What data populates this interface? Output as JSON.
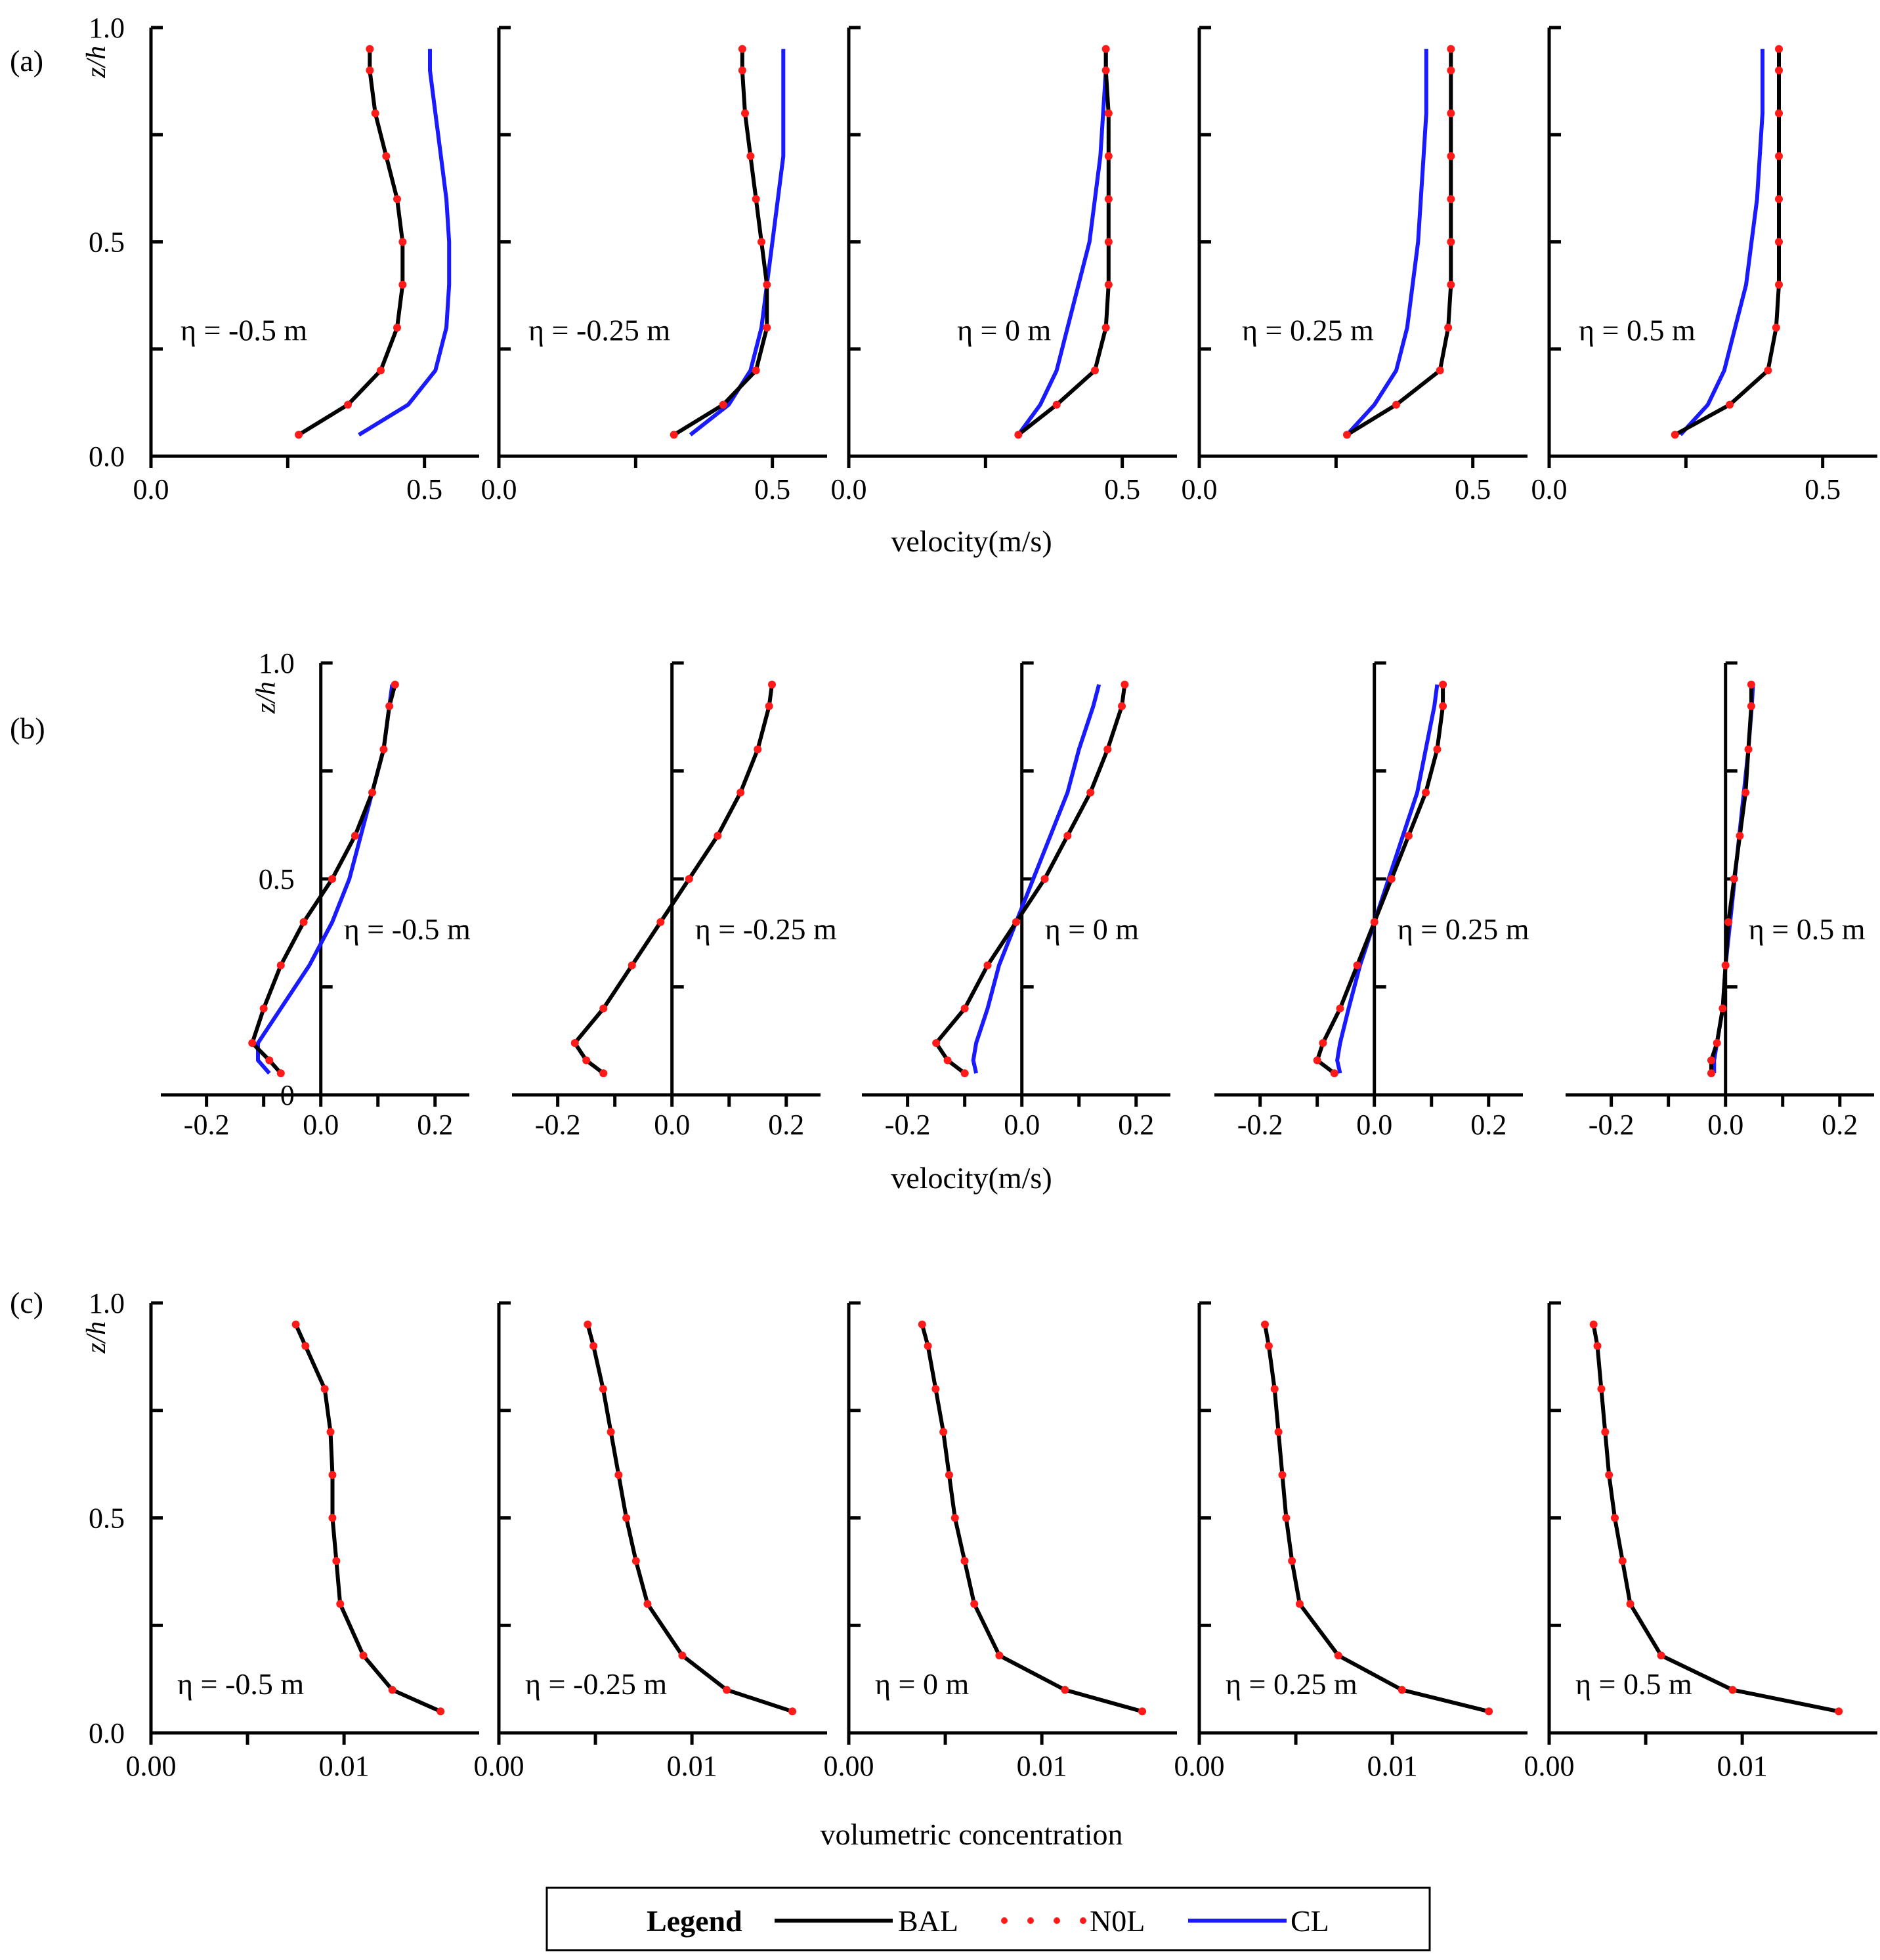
{
  "colors": {
    "BAL": "#000000",
    "N0L": "#ff1a1a",
    "CL": "#1a1aff"
  },
  "legend": {
    "title": "Legend",
    "items": [
      {
        "key": "BAL",
        "label": "BAL",
        "style": "solid-black"
      },
      {
        "key": "N0L",
        "label": "N0L",
        "style": "red-dots"
      },
      {
        "key": "CL",
        "label": "CL",
        "style": "solid-blue"
      }
    ]
  },
  "chart_data": [
    {
      "type": "line",
      "panel_label": "(a)",
      "xlabel": "velocity(m/s)",
      "ylabel": "z/h",
      "xlim": [
        0,
        0.6
      ],
      "ylim": [
        0,
        1
      ],
      "xticks": [
        0.0,
        0.25,
        0.5
      ],
      "xtick_labels": [
        "0.0",
        "",
        "0.5"
      ],
      "yticks": [
        0.0,
        0.25,
        0.5,
        0.75,
        1.0
      ],
      "ytick_labels": [
        "0.0",
        "",
        "0.5",
        "",
        "1.0"
      ],
      "z": [
        0.05,
        0.12,
        0.2,
        0.3,
        0.4,
        0.5,
        0.6,
        0.7,
        0.8,
        0.9,
        0.95
      ],
      "subplots": [
        {
          "eta": "η = -0.5 m",
          "BAL": [
            0.27,
            0.36,
            0.42,
            0.45,
            0.46,
            0.46,
            0.45,
            0.43,
            0.41,
            0.4,
            0.4
          ],
          "CL": [
            0.38,
            0.47,
            0.52,
            0.54,
            0.545,
            0.545,
            0.54,
            0.53,
            0.52,
            0.51,
            0.51
          ]
        },
        {
          "eta": "η = -0.25 m",
          "BAL": [
            0.32,
            0.41,
            0.47,
            0.49,
            0.49,
            0.48,
            0.47,
            0.46,
            0.45,
            0.445,
            0.445
          ],
          "CL": [
            0.35,
            0.42,
            0.46,
            0.48,
            0.49,
            0.5,
            0.51,
            0.52,
            0.52,
            0.52,
            0.52
          ]
        },
        {
          "eta": "η = 0 m",
          "BAL": [
            0.31,
            0.38,
            0.45,
            0.47,
            0.475,
            0.475,
            0.475,
            0.475,
            0.475,
            0.47,
            0.47
          ],
          "CL": [
            0.31,
            0.35,
            0.38,
            0.4,
            0.42,
            0.44,
            0.45,
            0.46,
            0.465,
            0.47,
            0.47
          ]
        },
        {
          "eta": "η = 0.25 m",
          "BAL": [
            0.27,
            0.36,
            0.44,
            0.455,
            0.46,
            0.46,
            0.46,
            0.46,
            0.46,
            0.46,
            0.46
          ],
          "CL": [
            0.27,
            0.32,
            0.36,
            0.38,
            0.39,
            0.4,
            0.405,
            0.41,
            0.415,
            0.415,
            0.415
          ]
        },
        {
          "eta": "η = 0.5 m",
          "BAL": [
            0.23,
            0.33,
            0.4,
            0.415,
            0.42,
            0.42,
            0.42,
            0.42,
            0.42,
            0.42,
            0.42
          ],
          "CL": [
            0.24,
            0.29,
            0.32,
            0.34,
            0.36,
            0.37,
            0.38,
            0.385,
            0.39,
            0.39,
            0.39
          ]
        }
      ]
    },
    {
      "type": "line",
      "panel_label": "(b)",
      "xlabel": "velocity(m/s)",
      "ylabel": "z/h",
      "xlim": [
        -0.28,
        0.26
      ],
      "ylim": [
        0,
        1
      ],
      "xticks": [
        -0.2,
        -0.1,
        0.0,
        0.1,
        0.2
      ],
      "xtick_labels": [
        "-0.2",
        "",
        "0.0",
        "",
        "0.2"
      ],
      "yticks": [
        0.0,
        0.25,
        0.5,
        0.75,
        1.0
      ],
      "ytick_labels": [
        "0",
        "",
        "0.5",
        "",
        "1.0"
      ],
      "z": [
        0.05,
        0.08,
        0.12,
        0.2,
        0.3,
        0.4,
        0.5,
        0.6,
        0.7,
        0.8,
        0.9,
        0.95
      ],
      "subplots": [
        {
          "eta": "η = -0.5 m",
          "BAL": [
            -0.07,
            -0.09,
            -0.12,
            -0.1,
            -0.07,
            -0.03,
            0.02,
            0.06,
            0.09,
            0.11,
            0.12,
            0.13
          ],
          "CL": [
            -0.09,
            -0.11,
            -0.11,
            -0.07,
            -0.02,
            0.02,
            0.05,
            0.07,
            0.09,
            0.11,
            0.12,
            0.125
          ]
        },
        {
          "eta": "η = -0.25 m",
          "BAL": [
            -0.12,
            -0.15,
            -0.17,
            -0.12,
            -0.07,
            -0.02,
            0.03,
            0.08,
            0.12,
            0.15,
            0.17,
            0.175
          ]
        },
        {
          "eta": "η = 0 m",
          "BAL": [
            -0.1,
            -0.13,
            -0.15,
            -0.1,
            -0.06,
            -0.01,
            0.04,
            0.08,
            0.12,
            0.15,
            0.175,
            0.18
          ],
          "CL": [
            -0.08,
            -0.085,
            -0.08,
            -0.06,
            -0.04,
            -0.01,
            0.02,
            0.05,
            0.08,
            0.1,
            0.125,
            0.135
          ]
        },
        {
          "eta": "η = 0.25 m",
          "BAL": [
            -0.07,
            -0.1,
            -0.09,
            -0.06,
            -0.03,
            0.0,
            0.03,
            0.06,
            0.09,
            0.11,
            0.12,
            0.12
          ],
          "CL": [
            -0.06,
            -0.065,
            -0.06,
            -0.045,
            -0.025,
            0.0,
            0.025,
            0.05,
            0.075,
            0.09,
            0.105,
            0.11
          ]
        },
        {
          "eta": "η = 0.5 m",
          "BAL": [
            -0.025,
            -0.025,
            -0.015,
            -0.005,
            0.0,
            0.005,
            0.015,
            0.025,
            0.035,
            0.04,
            0.045,
            0.045
          ],
          "CL": [
            -0.02,
            -0.02,
            -0.015,
            -0.005,
            0.0,
            0.008,
            0.016,
            0.024,
            0.032,
            0.04,
            0.046,
            0.048
          ]
        }
      ]
    },
    {
      "type": "line",
      "panel_label": "(c)",
      "xlabel": "volumetric concentration",
      "ylabel": "z/h",
      "xlim": [
        0,
        0.017
      ],
      "ylim": [
        0,
        1
      ],
      "xticks": [
        0.0,
        0.005,
        0.01
      ],
      "xtick_labels": [
        "0.00",
        "",
        "0.01"
      ],
      "yticks": [
        0.0,
        0.25,
        0.5,
        0.75,
        1.0
      ],
      "ytick_labels": [
        "0.0",
        "",
        "0.5",
        "",
        "1.0"
      ],
      "z": [
        0.05,
        0.1,
        0.18,
        0.3,
        0.4,
        0.5,
        0.6,
        0.7,
        0.8,
        0.9,
        0.95
      ],
      "subplots": [
        {
          "eta": "η = -0.5 m",
          "BAL": [
            0.015,
            0.0125,
            0.011,
            0.0098,
            0.0096,
            0.0094,
            0.0094,
            0.0093,
            0.009,
            0.008,
            0.0075
          ]
        },
        {
          "eta": "η = -0.25 m",
          "BAL": [
            0.0152,
            0.0118,
            0.0095,
            0.0077,
            0.0071,
            0.0066,
            0.0062,
            0.0058,
            0.0054,
            0.0049,
            0.0046
          ]
        },
        {
          "eta": "η = 0 m",
          "BAL": [
            0.0152,
            0.0112,
            0.0078,
            0.0065,
            0.006,
            0.0055,
            0.0052,
            0.0049,
            0.0045,
            0.0041,
            0.0038
          ]
        },
        {
          "eta": "η = 0.25 m",
          "BAL": [
            0.015,
            0.0105,
            0.0072,
            0.0052,
            0.0048,
            0.0045,
            0.0043,
            0.0041,
            0.0039,
            0.0036,
            0.0034
          ]
        },
        {
          "eta": "η = 0.5 m",
          "BAL": [
            0.015,
            0.0095,
            0.0058,
            0.0042,
            0.0038,
            0.0034,
            0.0031,
            0.0029,
            0.0027,
            0.0025,
            0.0023
          ]
        }
      ]
    }
  ]
}
